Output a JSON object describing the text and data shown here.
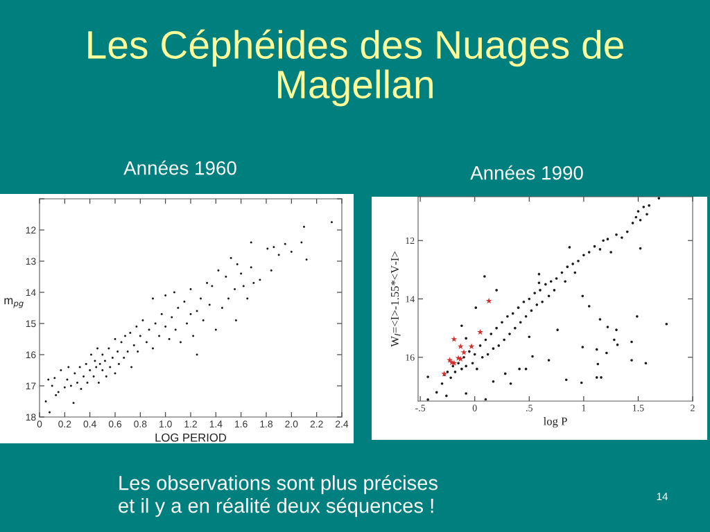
{
  "chart_data": [
    {
      "type": "scatter",
      "title": "Années 1960",
      "xlabel": "LOG PERIOD",
      "ylabel": "m$_{pg}$",
      "annotations": [
        "Les Céphéides des Nuages de Magellan"
      ],
      "xlim": [
        0,
        2.4
      ],
      "xticks": [
        0,
        {
          "value": 0.2,
          "label": "0.2"
        },
        {
          "value": 0.4,
          "label": "0.4"
        },
        {
          "value": 0.6,
          "label": "0.6"
        },
        {
          "value": 0.8,
          "label": "0.8"
        },
        {
          "value": 1.0,
          "label": "1.0"
        },
        {
          "value": 1.2,
          "label": "1.2"
        },
        {
          "value": 1.4,
          "label": "1.4"
        },
        {
          "value": 1.6,
          "label": "1.6"
        },
        {
          "value": 1.8,
          "label": "1.8"
        },
        {
          "value": 2.0,
          "label": "2.0"
        },
        {
          "value": 2.2,
          "label": "2.2"
        },
        {
          "value": 2.4,
          "label": "2.4"
        }
      ],
      "ylim": [
        18,
        11
      ],
      "yticks": [
        {
          "value": 11,
          "label": null
        },
        12,
        13,
        14,
        15,
        16,
        17,
        18
      ],
      "grid": false,
      "marker": "circle",
      "series": [
        {
          "color": "#1a1a1a",
          "x": [
            0.05,
            0.07,
            0.08,
            0.1,
            0.12,
            0.13,
            0.15,
            0.17,
            0.2,
            0.22,
            0.23,
            0.25,
            0.27,
            0.28,
            0.3,
            0.32,
            0.33,
            0.35,
            0.37,
            0.38,
            0.4,
            0.41,
            0.43,
            0.44,
            0.45,
            0.46,
            0.47,
            0.48,
            0.5,
            0.5,
            0.52,
            0.53,
            0.55,
            0.56,
            0.58,
            0.6,
            0.6,
            0.62,
            0.63,
            0.65,
            0.67,
            0.68,
            0.7,
            0.72,
            0.73,
            0.75,
            0.77,
            0.78,
            0.8,
            0.82,
            0.85,
            0.87,
            0.9,
            0.9,
            0.92,
            0.95,
            0.97,
            1.0,
            1.0,
            1.03,
            1.05,
            1.07,
            1.08,
            1.1,
            1.12,
            1.15,
            1.17,
            1.2,
            1.2,
            1.22,
            1.25,
            1.25,
            1.28,
            1.3,
            1.33,
            1.35,
            1.37,
            1.4,
            1.42,
            1.45,
            1.48,
            1.5,
            1.52,
            1.55,
            1.56,
            1.57,
            1.6,
            1.62,
            1.65,
            1.68,
            1.68,
            1.7,
            1.75,
            1.81,
            1.84,
            1.86,
            1.9,
            1.95,
            2.0,
            2.08,
            2.1,
            2.12,
            2.32
          ],
          "values": [
            17.5,
            16.8,
            17.85,
            17.0,
            16.75,
            17.3,
            17.2,
            16.5,
            17.05,
            16.8,
            16.4,
            17.0,
            17.55,
            16.6,
            16.9,
            16.4,
            17.1,
            16.7,
            16.3,
            16.9,
            16.5,
            16.0,
            16.7,
            16.2,
            16.4,
            15.8,
            16.9,
            16.3,
            16.5,
            16.0,
            16.2,
            16.7,
            15.8,
            16.4,
            16.1,
            15.5,
            16.6,
            15.9,
            16.3,
            15.6,
            16.1,
            15.4,
            15.9,
            15.3,
            16.4,
            15.7,
            15.1,
            15.9,
            15.4,
            14.9,
            15.6,
            15.2,
            14.2,
            15.8,
            15.0,
            15.4,
            14.7,
            14.1,
            15.1,
            15.5,
            14.8,
            14.0,
            15.2,
            14.5,
            15.6,
            14.3,
            15.0,
            13.9,
            14.7,
            15.4,
            16.0,
            14.6,
            14.2,
            14.9,
            13.7,
            14.4,
            13.8,
            15.2,
            13.3,
            14.5,
            13.5,
            14.2,
            12.9,
            13.9,
            14.9,
            13.1,
            13.4,
            13.8,
            14.2,
            12.4,
            13.2,
            13.7,
            13.6,
            12.6,
            13.3,
            12.55,
            12.8,
            12.45,
            12.7,
            12.4,
            11.9,
            12.95,
            11.75
          ]
        }
      ]
    },
    {
      "type": "scatter",
      "title": "Années 1990",
      "xlabel": "log P",
      "ylabel": "W$_{I}$=<I>-1.55*<V-I>",
      "annotations": [
        "Les observations sont plus précises\net il y a en réalité deux séquences !",
        "14"
      ],
      "xlim": [
        -0.52,
        2
      ],
      "xticks": [
        {
          "value": -0.5,
          "label": "-.5"
        },
        0,
        {
          "value": 0.5,
          "label": ".5"
        },
        1,
        {
          "value": 1.5,
          "label": "1.5"
        },
        2
      ],
      "ylim": [
        17.5,
        10.5
      ],
      "yticks": [
        12,
        14,
        16
      ],
      "grid": false,
      "series": [
        {
          "color": "#1a1a1a",
          "marker": "circle",
          "x": [
            -0.43,
            -0.35,
            -0.3,
            -0.28,
            -0.25,
            -0.22,
            -0.2,
            -0.18,
            -0.15,
            -0.12,
            -0.1,
            -0.08,
            -0.05,
            -0.02,
            0.0,
            0.02,
            0.05,
            0.07,
            0.1,
            0.12,
            0.15,
            0.17,
            0.2,
            0.22,
            0.25,
            0.27,
            0.3,
            0.32,
            0.35,
            0.37,
            0.4,
            0.42,
            0.45,
            0.47,
            0.5,
            0.52,
            0.55,
            0.57,
            0.6,
            0.62,
            0.65,
            0.68,
            0.7,
            0.73,
            0.75,
            0.8,
            0.83,
            0.85,
            0.9,
            0.92,
            0.95,
            1.0,
            1.05,
            1.1,
            1.15,
            1.18,
            1.22,
            1.25,
            1.3,
            1.35,
            1.4,
            1.45,
            1.48,
            1.5,
            1.52,
            1.55,
            1.58,
            1.6,
            0.87,
            0.09,
            0.2,
            0.01,
            -0.12,
            -0.08,
            0.59,
            0.59,
            0.99,
            1.05,
            1.15,
            1.22,
            1.3,
            1.28,
            1.31,
            1.49,
            1.76,
            1.44,
            1.52,
            0.99,
            1.12,
            1.21,
            1.44,
            1.57,
            1.13,
            0.68,
            0.53,
            0.41,
            0.47,
            0.76,
            0.5,
            0.28,
            0.33,
            0.17,
            0.84,
            0.98,
            1.12,
            1.16,
            -0.08,
            -0.26,
            0.1,
            -0.43,
            1.69
          ],
          "values": [
            17.45,
            17.2,
            16.9,
            16.6,
            16.5,
            16.7,
            16.3,
            16.5,
            16.2,
            16.4,
            16.0,
            16.3,
            15.8,
            16.2,
            15.9,
            16.4,
            15.6,
            16.0,
            15.4,
            15.9,
            15.2,
            15.7,
            15.0,
            15.6,
            14.8,
            15.4,
            14.6,
            15.2,
            14.5,
            15.0,
            14.3,
            14.8,
            14.1,
            14.6,
            14.0,
            14.4,
            13.8,
            14.2,
            13.7,
            14.1,
            13.5,
            13.9,
            13.4,
            13.7,
            13.3,
            13.1,
            13.4,
            12.9,
            12.8,
            13.1,
            12.7,
            12.5,
            12.4,
            12.2,
            12.3,
            12.0,
            11.95,
            12.4,
            11.8,
            11.9,
            11.7,
            11.4,
            11.2,
            11.0,
            11.3,
            10.85,
            11.1,
            10.8,
            12.23,
            13.23,
            13.7,
            14.3,
            14.92,
            15.35,
            13.15,
            13.45,
            13.9,
            14.25,
            14.7,
            14.96,
            15.06,
            15.4,
            15.57,
            14.6,
            14.86,
            15.47,
            12.27,
            15.65,
            15.73,
            15.85,
            16.1,
            16.2,
            16.23,
            16.1,
            15.97,
            16.4,
            16.4,
            15.06,
            15.3,
            16.56,
            16.9,
            16.83,
            16.77,
            16.87,
            16.69,
            16.69,
            17.24,
            17.32,
            17.44,
            16.67,
            10.55
          ]
        },
        {
          "color": "#d03030",
          "marker": "star",
          "x": [
            0.13,
            0.05,
            -0.19,
            -0.13,
            -0.03,
            -0.1,
            -0.15,
            -0.13,
            -0.23,
            -0.21,
            -0.19,
            -0.28
          ],
          "values": [
            14.07,
            15.14,
            15.38,
            15.63,
            15.63,
            15.83,
            16.03,
            16.06,
            16.1,
            16.18,
            16.2,
            16.57
          ]
        }
      ]
    }
  ]
}
